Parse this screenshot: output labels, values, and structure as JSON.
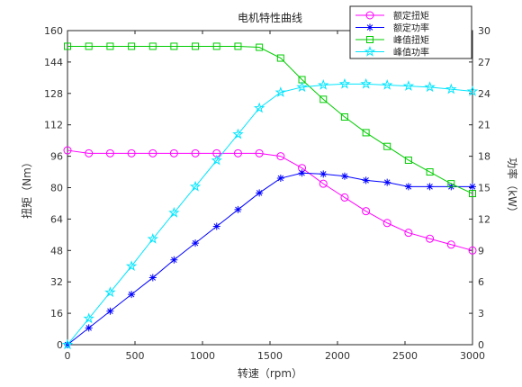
{
  "chart_data": {
    "type": "line",
    "title": "电机特性曲线",
    "xlabel": "转速（rpm）",
    "ylabel_left": "扭矩（Nm）",
    "ylabel_right": "功率（kW）",
    "xlim": [
      0,
      3000
    ],
    "ylim_left": [
      0,
      160
    ],
    "ylim_right": [
      0,
      30
    ],
    "x_ticks": [
      "0",
      "500",
      "1000",
      "1500",
      "2000",
      "2500",
      "3000"
    ],
    "y_left_ticks": [
      "0",
      "16",
      "32",
      "48",
      "64",
      "80",
      "96",
      "112",
      "128",
      "144",
      "160"
    ],
    "y_right_ticks": [
      "0",
      "3",
      "6",
      "9",
      "12",
      "15",
      "18",
      "21",
      "24",
      "27",
      "30"
    ],
    "legend_position": "top-right",
    "grid": false,
    "series": [
      {
        "name": "额定扭矩",
        "axis": "left",
        "color": "#ff00ff",
        "marker": "circle",
        "x": [
          0,
          158,
          316,
          474,
          632,
          789,
          947,
          1105,
          1263,
          1421,
          1579,
          1737,
          1895,
          2053,
          2211,
          2368,
          2526,
          2684,
          2842,
          3000
        ],
        "y": [
          99,
          97.5,
          97.5,
          97.5,
          97.5,
          97.5,
          97.5,
          97.5,
          97.5,
          97.5,
          96,
          90,
          82,
          75,
          68,
          62,
          57,
          54,
          51,
          48
        ]
      },
      {
        "name": "额定功率",
        "axis": "right",
        "color": "#0000ff",
        "marker": "asterisk",
        "x": [
          0,
          158,
          316,
          474,
          632,
          789,
          947,
          1105,
          1263,
          1421,
          1579,
          1737,
          1895,
          2053,
          2211,
          2368,
          2526,
          2684,
          2842,
          3000
        ],
        "y": [
          0,
          1.6,
          3.2,
          4.8,
          6.4,
          8.1,
          9.7,
          11.3,
          12.9,
          14.5,
          15.9,
          16.4,
          16.3,
          16.1,
          15.7,
          15.5,
          15.1,
          15.1,
          15.1,
          15.1
        ]
      },
      {
        "name": "峰值扭矩",
        "axis": "left",
        "color": "#00cc00",
        "marker": "square",
        "x": [
          0,
          158,
          316,
          474,
          632,
          789,
          947,
          1105,
          1263,
          1421,
          1579,
          1737,
          1895,
          2053,
          2211,
          2368,
          2526,
          2684,
          2842,
          3000
        ],
        "y": [
          152,
          152,
          152,
          152,
          152,
          152,
          152,
          152,
          152,
          151.5,
          146,
          135,
          125,
          116,
          108,
          101,
          94,
          88,
          82,
          77
        ]
      },
      {
        "name": "峰值功率",
        "axis": "right",
        "color": "#00e5ff",
        "marker": "star",
        "x": [
          0,
          158,
          316,
          474,
          632,
          789,
          947,
          1105,
          1263,
          1421,
          1579,
          1737,
          1895,
          2053,
          2211,
          2368,
          2526,
          2684,
          2842,
          3000
        ],
        "y": [
          0,
          2.5,
          5.0,
          7.5,
          10.1,
          12.6,
          15.1,
          17.6,
          20.1,
          22.6,
          24.1,
          24.6,
          24.8,
          24.9,
          24.9,
          24.8,
          24.7,
          24.6,
          24.4,
          24.2
        ]
      }
    ]
  }
}
